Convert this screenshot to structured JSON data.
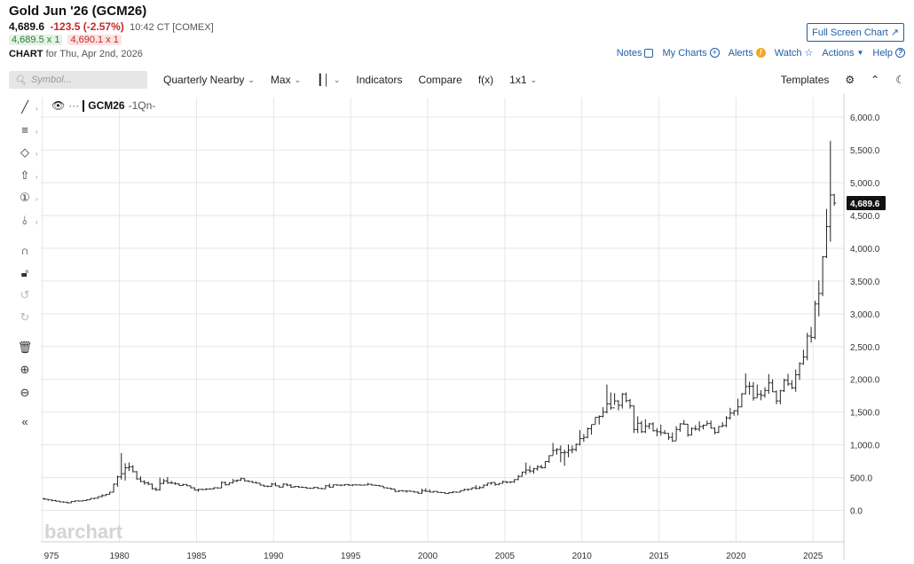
{
  "header": {
    "title": "Gold Jun '26 (GCM26)",
    "last": "4,689.6",
    "change": "-123.5 (-2.57%)",
    "time": "10:42 CT [COMEX]",
    "bid": "4,689.5 x 1",
    "ask": "4,690.1 x 1",
    "chart_label": "CHART",
    "chart_for": "for Thu, Apr 2nd, 2026",
    "full_screen": "Full Screen Chart",
    "links": {
      "notes": "Notes",
      "my_charts": "My Charts",
      "alerts": "Alerts",
      "watch": "Watch",
      "actions": "Actions",
      "help": "Help"
    }
  },
  "toolbar": {
    "symbol_placeholder": "Symbol...",
    "period": "Quarterly Nearby",
    "range": "Max",
    "indicators": "Indicators",
    "compare": "Compare",
    "fx": "f(x)",
    "layout": "1x1",
    "templates": "Templates"
  },
  "legend": {
    "symbol": "GCM26",
    "period": "-1Qn-"
  },
  "watermark": "barchart",
  "colors": {
    "bar": "#222222",
    "grid": "#e6e6e6",
    "price_badge": "#111111",
    "accent": "#1f5fa8",
    "down": "#c62828",
    "up": "#2e7d32"
  },
  "chart_data": {
    "type": "ohlc",
    "title": "Gold Jun '26 (GCM26)",
    "x_ticks": [
      "975",
      "1980",
      "1985",
      "1990",
      "1995",
      "2000",
      "2005",
      "2010",
      "2015",
      "2020",
      "2025"
    ],
    "y_ticks": [
      "6,000.0",
      "5,500.0",
      "5,000.0",
      "4,500.0",
      "4,000.0",
      "3,500.0",
      "3,000.0",
      "2,500.0",
      "2,000.0",
      "1,500.0",
      "1,000.0",
      "500.0",
      "0.0"
    ],
    "xlim": [
      1974.9,
      2027.0
    ],
    "ylim": [
      -480,
      6300
    ],
    "last_price": 4689.6,
    "last_price_label": "4,689.6",
    "bars": [
      [
        1975.0,
        180,
        190,
        160,
        170
      ],
      [
        1975.25,
        170,
        175,
        150,
        160
      ],
      [
        1975.5,
        160,
        165,
        140,
        150
      ],
      [
        1975.75,
        150,
        160,
        135,
        140
      ],
      [
        1976.0,
        140,
        145,
        125,
        130
      ],
      [
        1976.25,
        130,
        135,
        115,
        125
      ],
      [
        1976.5,
        125,
        130,
        105,
        115
      ],
      [
        1976.75,
        115,
        140,
        110,
        135
      ],
      [
        1977.0,
        135,
        150,
        130,
        145
      ],
      [
        1977.25,
        145,
        150,
        135,
        142
      ],
      [
        1977.5,
        142,
        155,
        140,
        150
      ],
      [
        1977.75,
        150,
        168,
        145,
        162
      ],
      [
        1978.0,
        162,
        185,
        160,
        182
      ],
      [
        1978.25,
        182,
        190,
        170,
        185
      ],
      [
        1978.5,
        185,
        215,
        182,
        210
      ],
      [
        1978.75,
        210,
        245,
        200,
        226
      ],
      [
        1979.0,
        226,
        250,
        220,
        245
      ],
      [
        1979.25,
        245,
        285,
        240,
        278
      ],
      [
        1979.5,
        278,
        410,
        275,
        400
      ],
      [
        1979.75,
        400,
        530,
        360,
        512
      ],
      [
        1980.0,
        512,
        875,
        470,
        560
      ],
      [
        1980.25,
        560,
        720,
        455,
        650
      ],
      [
        1980.5,
        650,
        730,
        600,
        665
      ],
      [
        1980.75,
        665,
        690,
        580,
        590
      ],
      [
        1981.0,
        590,
        600,
        470,
        480
      ],
      [
        1981.25,
        480,
        520,
        430,
        440
      ],
      [
        1981.5,
        440,
        460,
        390,
        420
      ],
      [
        1981.75,
        420,
        440,
        385,
        400
      ],
      [
        1982.0,
        400,
        410,
        320,
        330
      ],
      [
        1982.25,
        330,
        350,
        296,
        315
      ],
      [
        1982.5,
        315,
        500,
        300,
        410
      ],
      [
        1982.75,
        410,
        480,
        400,
        450
      ],
      [
        1983.0,
        450,
        510,
        405,
        420
      ],
      [
        1983.25,
        420,
        450,
        405,
        415
      ],
      [
        1983.5,
        415,
        430,
        390,
        405
      ],
      [
        1983.75,
        405,
        410,
        375,
        380
      ],
      [
        1984.0,
        380,
        405,
        375,
        395
      ],
      [
        1984.25,
        395,
        400,
        370,
        375
      ],
      [
        1984.5,
        375,
        380,
        335,
        345
      ],
      [
        1984.75,
        345,
        350,
        305,
        310
      ],
      [
        1985.0,
        310,
        330,
        285,
        320
      ],
      [
        1985.25,
        320,
        330,
        310,
        318
      ],
      [
        1985.5,
        318,
        340,
        310,
        325
      ],
      [
        1985.75,
        325,
        335,
        318,
        328
      ],
      [
        1986.0,
        328,
        350,
        320,
        345
      ],
      [
        1986.25,
        345,
        350,
        335,
        342
      ],
      [
        1986.5,
        342,
        445,
        340,
        425
      ],
      [
        1986.75,
        425,
        440,
        380,
        390
      ],
      [
        1987.0,
        390,
        425,
        385,
        420
      ],
      [
        1987.25,
        420,
        480,
        410,
        450
      ],
      [
        1987.5,
        450,
        470,
        430,
        460
      ],
      [
        1987.75,
        460,
        500,
        450,
        485
      ],
      [
        1988.0,
        485,
        490,
        440,
        450
      ],
      [
        1988.25,
        450,
        460,
        435,
        440
      ],
      [
        1988.5,
        440,
        450,
        420,
        425
      ],
      [
        1988.75,
        425,
        440,
        410,
        415
      ],
      [
        1989.0,
        415,
        420,
        380,
        385
      ],
      [
        1989.25,
        385,
        390,
        360,
        370
      ],
      [
        1989.5,
        370,
        380,
        355,
        365
      ],
      [
        1989.75,
        365,
        420,
        360,
        400
      ],
      [
        1990.0,
        400,
        425,
        370,
        375
      ],
      [
        1990.25,
        375,
        380,
        345,
        355
      ],
      [
        1990.5,
        355,
        410,
        350,
        400
      ],
      [
        1990.75,
        400,
        410,
        370,
        385
      ],
      [
        1991.0,
        385,
        400,
        345,
        355
      ],
      [
        1991.25,
        355,
        370,
        350,
        365
      ],
      [
        1991.5,
        365,
        370,
        345,
        355
      ],
      [
        1991.75,
        355,
        365,
        345,
        350
      ],
      [
        1992.0,
        350,
        360,
        335,
        340
      ],
      [
        1992.25,
        340,
        345,
        330,
        338
      ],
      [
        1992.5,
        338,
        360,
        335,
        350
      ],
      [
        1992.75,
        350,
        355,
        330,
        335
      ],
      [
        1993.0,
        335,
        345,
        325,
        330
      ],
      [
        1993.25,
        330,
        385,
        328,
        375
      ],
      [
        1993.5,
        375,
        410,
        345,
        355
      ],
      [
        1993.75,
        355,
        395,
        350,
        390
      ],
      [
        1994.0,
        390,
        395,
        375,
        385
      ],
      [
        1994.25,
        385,
        395,
        370,
        385
      ],
      [
        1994.5,
        385,
        400,
        375,
        395
      ],
      [
        1994.75,
        395,
        400,
        375,
        385
      ],
      [
        1995.0,
        385,
        395,
        370,
        390
      ],
      [
        1995.25,
        390,
        395,
        380,
        388
      ],
      [
        1995.5,
        388,
        395,
        380,
        385
      ],
      [
        1995.75,
        385,
        392,
        380,
        388
      ],
      [
        1996.0,
        388,
        420,
        385,
        398
      ],
      [
        1996.25,
        398,
        402,
        380,
        385
      ],
      [
        1996.5,
        385,
        390,
        375,
        380
      ],
      [
        1996.75,
        380,
        385,
        365,
        370
      ],
      [
        1997.0,
        370,
        372,
        340,
        345
      ],
      [
        1997.25,
        345,
        350,
        335,
        338
      ],
      [
        1997.5,
        338,
        340,
        315,
        325
      ],
      [
        1997.75,
        325,
        330,
        280,
        290
      ],
      [
        1998.0,
        290,
        305,
        280,
        300
      ],
      [
        1998.25,
        300,
        310,
        290,
        295
      ],
      [
        1998.5,
        295,
        300,
        270,
        295
      ],
      [
        1998.75,
        295,
        300,
        285,
        290
      ],
      [
        1999.0,
        290,
        292,
        270,
        280
      ],
      [
        1999.25,
        280,
        285,
        255,
        262
      ],
      [
        1999.5,
        262,
        330,
        252,
        300
      ],
      [
        1999.75,
        300,
        335,
        285,
        290
      ],
      [
        2000.0,
        290,
        320,
        278,
        280
      ],
      [
        2000.25,
        280,
        292,
        270,
        290
      ],
      [
        2000.5,
        290,
        292,
        270,
        275
      ],
      [
        2000.75,
        275,
        278,
        264,
        272
      ],
      [
        2001.0,
        272,
        275,
        255,
        258
      ],
      [
        2001.25,
        258,
        275,
        256,
        270
      ],
      [
        2001.5,
        270,
        295,
        265,
        280
      ],
      [
        2001.75,
        280,
        285,
        270,
        278
      ],
      [
        2002.0,
        278,
        305,
        276,
        302
      ],
      [
        2002.25,
        302,
        330,
        300,
        318
      ],
      [
        2002.5,
        318,
        330,
        300,
        322
      ],
      [
        2002.75,
        322,
        350,
        315,
        345
      ],
      [
        2003.0,
        345,
        385,
        320,
        335
      ],
      [
        2003.25,
        335,
        370,
        325,
        348
      ],
      [
        2003.5,
        348,
        395,
        340,
        385
      ],
      [
        2003.75,
        385,
        420,
        370,
        415
      ],
      [
        2004.0,
        415,
        430,
        390,
        425
      ],
      [
        2004.25,
        425,
        430,
        375,
        395
      ],
      [
        2004.5,
        395,
        415,
        385,
        412
      ],
      [
        2004.75,
        412,
        455,
        410,
        438
      ],
      [
        2005.0,
        438,
        445,
        410,
        430
      ],
      [
        2005.25,
        430,
        440,
        415,
        436
      ],
      [
        2005.5,
        436,
        475,
        420,
        470
      ],
      [
        2005.75,
        470,
        540,
        460,
        518
      ],
      [
        2006.0,
        518,
        590,
        515,
        585
      ],
      [
        2006.25,
        585,
        730,
        545,
        615
      ],
      [
        2006.5,
        615,
        680,
        570,
        600
      ],
      [
        2006.75,
        600,
        650,
        560,
        635
      ],
      [
        2007.0,
        635,
        690,
        605,
        665
      ],
      [
        2007.25,
        665,
        695,
        640,
        650
      ],
      [
        2007.5,
        650,
        750,
        645,
        745
      ],
      [
        2007.75,
        745,
        840,
        725,
        835
      ],
      [
        2008.0,
        835,
        1030,
        840,
        915
      ],
      [
        2008.25,
        915,
        950,
        850,
        930
      ],
      [
        2008.5,
        930,
        990,
        735,
        880
      ],
      [
        2008.75,
        880,
        930,
        680,
        885
      ],
      [
        2009.0,
        885,
        1005,
        810,
        920
      ],
      [
        2009.25,
        920,
        990,
        870,
        930
      ],
      [
        2009.5,
        930,
        1020,
        900,
        1008
      ],
      [
        2009.75,
        1008,
        1225,
        990,
        1095
      ],
      [
        2010.0,
        1095,
        1165,
        1045,
        1115
      ],
      [
        2010.25,
        1115,
        1265,
        1100,
        1245
      ],
      [
        2010.5,
        1245,
        1310,
        1155,
        1310
      ],
      [
        2010.75,
        1310,
        1425,
        1315,
        1420
      ],
      [
        2011.0,
        1420,
        1450,
        1310,
        1435
      ],
      [
        2011.25,
        1435,
        1575,
        1420,
        1500
      ],
      [
        2011.5,
        1500,
        1920,
        1480,
        1625
      ],
      [
        2011.75,
        1625,
        1800,
        1535,
        1565
      ],
      [
        2012.0,
        1565,
        1790,
        1610,
        1670
      ],
      [
        2012.25,
        1670,
        1680,
        1525,
        1605
      ],
      [
        2012.5,
        1605,
        1790,
        1555,
        1775
      ],
      [
        2012.75,
        1775,
        1800,
        1650,
        1675
      ],
      [
        2013.0,
        1675,
        1700,
        1555,
        1595
      ],
      [
        2013.25,
        1595,
        1600,
        1180,
        1235
      ],
      [
        2013.5,
        1235,
        1435,
        1180,
        1330
      ],
      [
        2013.75,
        1330,
        1365,
        1180,
        1200
      ],
      [
        2014.0,
        1200,
        1390,
        1180,
        1285
      ],
      [
        2014.25,
        1285,
        1335,
        1240,
        1320
      ],
      [
        2014.5,
        1320,
        1345,
        1205,
        1215
      ],
      [
        2014.75,
        1215,
        1255,
        1130,
        1200
      ],
      [
        2015.0,
        1200,
        1310,
        1140,
        1185
      ],
      [
        2015.25,
        1185,
        1225,
        1165,
        1175
      ],
      [
        2015.5,
        1175,
        1180,
        1075,
        1115
      ],
      [
        2015.75,
        1115,
        1190,
        1045,
        1060
      ],
      [
        2016.0,
        1060,
        1285,
        1065,
        1235
      ],
      [
        2016.25,
        1235,
        1330,
        1200,
        1320
      ],
      [
        2016.5,
        1320,
        1380,
        1310,
        1315
      ],
      [
        2016.75,
        1315,
        1320,
        1125,
        1150
      ],
      [
        2017.0,
        1150,
        1265,
        1145,
        1250
      ],
      [
        2017.25,
        1250,
        1300,
        1215,
        1240
      ],
      [
        2017.5,
        1240,
        1360,
        1205,
        1280
      ],
      [
        2017.75,
        1280,
        1310,
        1235,
        1300
      ],
      [
        2018.0,
        1300,
        1370,
        1305,
        1325
      ],
      [
        2018.25,
        1325,
        1370,
        1250,
        1255
      ],
      [
        2018.5,
        1255,
        1265,
        1160,
        1190
      ],
      [
        2018.75,
        1190,
        1285,
        1180,
        1280
      ],
      [
        2019.0,
        1280,
        1345,
        1270,
        1295
      ],
      [
        2019.25,
        1295,
        1440,
        1270,
        1410
      ],
      [
        2019.5,
        1410,
        1565,
        1385,
        1485
      ],
      [
        2019.75,
        1485,
        1530,
        1445,
        1520
      ],
      [
        2020.0,
        1520,
        1705,
        1450,
        1580
      ],
      [
        2020.25,
        1580,
        1790,
        1575,
        1780
      ],
      [
        2020.5,
        1780,
        2090,
        1770,
        1890
      ],
      [
        2020.75,
        1890,
        1965,
        1765,
        1895
      ],
      [
        2021.0,
        1895,
        1960,
        1675,
        1715
      ],
      [
        2021.25,
        1715,
        1920,
        1720,
        1770
      ],
      [
        2021.5,
        1770,
        1835,
        1680,
        1755
      ],
      [
        2021.75,
        1755,
        1880,
        1720,
        1830
      ],
      [
        2022.0,
        1830,
        2080,
        1780,
        1945
      ],
      [
        2022.25,
        1945,
        2000,
        1805,
        1810
      ],
      [
        2022.5,
        1810,
        1830,
        1620,
        1670
      ],
      [
        2022.75,
        1670,
        1840,
        1620,
        1825
      ],
      [
        2023.0,
        1825,
        2010,
        1805,
        1985
      ],
      [
        2023.25,
        1985,
        2085,
        1900,
        1930
      ],
      [
        2023.5,
        1930,
        1985,
        1850,
        1870
      ],
      [
        2023.75,
        1870,
        2150,
        1810,
        2070
      ],
      [
        2024.0,
        2070,
        2260,
        1990,
        2240
      ],
      [
        2024.25,
        2240,
        2450,
        2220,
        2340
      ],
      [
        2024.5,
        2340,
        2710,
        2290,
        2660
      ],
      [
        2024.75,
        2660,
        2800,
        2560,
        2640
      ],
      [
        2025.0,
        2640,
        3200,
        2610,
        3150
      ],
      [
        2025.25,
        3150,
        3510,
        2960,
        3310
      ],
      [
        2025.5,
        3310,
        3880,
        3270,
        3870
      ],
      [
        2025.75,
        3870,
        4600,
        3850,
        4330
      ],
      [
        2026.0,
        4330,
        5640,
        4100,
        4813
      ],
      [
        2026.25,
        4813,
        4830,
        4650,
        4689.6
      ]
    ]
  }
}
